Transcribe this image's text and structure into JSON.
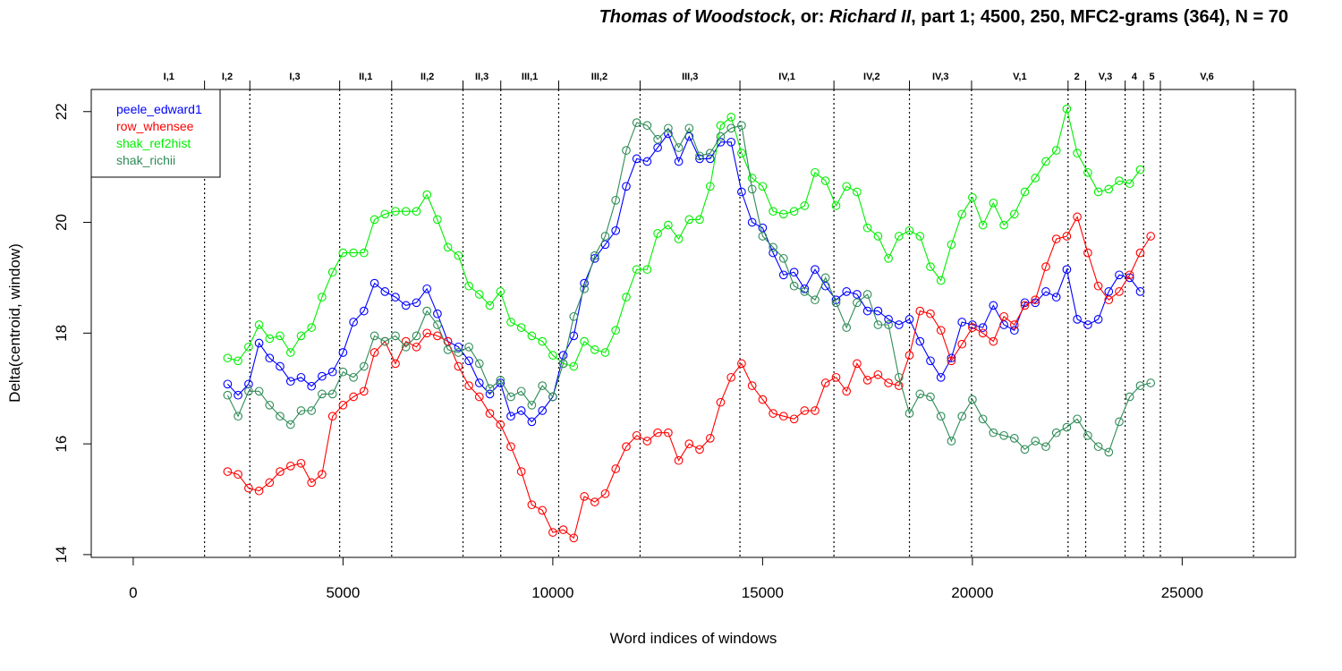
{
  "title": {
    "part1_italic": "Thomas of Woodstock",
    "part2": ", or: ",
    "part3_italic": "Richard II",
    "part4": ", part 1; 4500, 250, MFC2-grams (364), N = 70"
  },
  "chart_data": {
    "type": "line",
    "xlabel": "Word indices of windows",
    "ylabel": "Delta(centroid, window)",
    "xlim": [
      -1000,
      27700
    ],
    "ylim": [
      13.95,
      22.4
    ],
    "x_ticks": [
      0,
      5000,
      10000,
      15000,
      20000,
      25000
    ],
    "x_tick_labels": [
      "0",
      "5000",
      "10000",
      "15000",
      "20000",
      "25000"
    ],
    "y_ticks": [
      14,
      16,
      18,
      20,
      22
    ],
    "y_tick_labels": [
      "14",
      "16",
      "18",
      "20",
      "22"
    ],
    "grid": false,
    "legend_position": "top-left",
    "point_shape": "open-circle",
    "scene_boundaries": [
      1700,
      2780,
      4920,
      6160,
      7860,
      8760,
      10140,
      12080,
      14460,
      16700,
      18500,
      19980,
      22280,
      22700,
      23640,
      24080,
      24480,
      26700
    ],
    "scene_labels": [
      {
        "label": "I,1",
        "x": 850
      },
      {
        "label": "I,2",
        "x": 2240
      },
      {
        "label": "I,3",
        "x": 3850
      },
      {
        "label": "II,1",
        "x": 5540
      },
      {
        "label": "II,2",
        "x": 7010
      },
      {
        "label": "II,3",
        "x": 8310
      },
      {
        "label": "III,1",
        "x": 9450
      },
      {
        "label": "III,2",
        "x": 11110
      },
      {
        "label": "III,3",
        "x": 13270
      },
      {
        "label": "IV,1",
        "x": 15580
      },
      {
        "label": "IV,2",
        "x": 17600
      },
      {
        "label": "IV,3",
        "x": 19240
      },
      {
        "label": "V,1",
        "x": 21130
      },
      {
        "label": "2",
        "x": 22490
      },
      {
        "label": "V,3",
        "x": 23170
      },
      {
        "label": "4",
        "x": 23860
      },
      {
        "label": "5",
        "x": 24280
      },
      {
        "label": "V,6",
        "x": 25590
      }
    ],
    "x_start": 2250,
    "x_step": 250,
    "series": [
      {
        "name": "peele_edward1",
        "color": "#0000ff",
        "values": [
          17.08,
          16.88,
          17.08,
          17.82,
          17.55,
          17.4,
          17.13,
          17.2,
          17.04,
          17.22,
          17.3,
          17.65,
          18.2,
          18.4,
          18.9,
          18.75,
          18.65,
          18.5,
          18.55,
          18.8,
          18.35,
          17.85,
          17.75,
          17.5,
          17.1,
          16.9,
          17.1,
          16.5,
          16.6,
          16.4,
          16.6,
          16.85,
          17.6,
          17.95,
          18.9,
          19.35,
          19.6,
          19.85,
          20.65,
          21.15,
          21.1,
          21.35,
          21.6,
          21.1,
          21.55,
          21.15,
          21.15,
          21.45,
          21.45,
          20.55,
          20.0,
          19.9,
          19.45,
          19.05,
          19.1,
          18.8,
          19.15,
          18.85,
          18.6,
          18.75,
          18.7,
          18.4,
          18.4,
          18.25,
          18.15,
          18.25,
          17.85,
          17.5,
          17.2,
          17.55,
          18.2,
          18.15,
          18.1,
          18.5,
          18.15,
          18.05,
          18.55,
          18.55,
          18.75,
          18.65,
          19.15,
          18.25,
          18.15,
          18.25,
          18.75,
          19.05,
          19.0,
          18.75
        ]
      },
      {
        "name": "row_whensee",
        "color": "#ff0000",
        "values": [
          15.5,
          15.45,
          15.2,
          15.15,
          15.3,
          15.5,
          15.6,
          15.65,
          15.3,
          15.45,
          16.5,
          16.7,
          16.85,
          16.95,
          17.65,
          17.85,
          17.45,
          17.85,
          17.75,
          18.0,
          17.95,
          17.85,
          17.4,
          17.05,
          16.85,
          16.55,
          16.35,
          15.95,
          15.5,
          14.9,
          14.8,
          14.4,
          14.45,
          14.3,
          15.05,
          14.95,
          15.1,
          15.55,
          15.95,
          16.15,
          16.05,
          16.2,
          16.2,
          15.7,
          16.0,
          15.9,
          16.1,
          16.75,
          17.2,
          17.45,
          17.05,
          16.8,
          16.55,
          16.5,
          16.45,
          16.6,
          16.6,
          17.1,
          17.2,
          16.95,
          17.45,
          17.15,
          17.25,
          17.1,
          17.05,
          17.6,
          18.4,
          18.35,
          18.05,
          17.5,
          17.8,
          18.1,
          18.0,
          17.85,
          18.3,
          18.15,
          18.5,
          18.6,
          19.2,
          19.7,
          19.75,
          20.1,
          19.45,
          18.85,
          18.6,
          18.75,
          19.05,
          19.45,
          19.75
        ]
      },
      {
        "name": "shak_ref2hist",
        "color": "#00ee00",
        "values": [
          17.55,
          17.5,
          17.75,
          18.15,
          17.9,
          17.95,
          17.65,
          17.95,
          18.1,
          18.65,
          19.1,
          19.45,
          19.45,
          19.45,
          20.05,
          20.15,
          20.2,
          20.2,
          20.2,
          20.5,
          20.05,
          19.55,
          19.4,
          18.85,
          18.7,
          18.5,
          18.75,
          18.2,
          18.1,
          17.95,
          17.85,
          17.6,
          17.45,
          17.4,
          17.85,
          17.7,
          17.65,
          18.05,
          18.65,
          19.15,
          19.15,
          19.8,
          19.95,
          19.7,
          20.05,
          20.05,
          20.65,
          21.75,
          21.9,
          21.25,
          20.8,
          20.65,
          20.2,
          20.15,
          20.2,
          20.3,
          20.9,
          20.75,
          20.3,
          20.65,
          20.55,
          19.9,
          19.75,
          19.35,
          19.75,
          19.85,
          19.75,
          19.2,
          18.95,
          19.6,
          20.15,
          20.45,
          19.95,
          20.35,
          19.95,
          20.15,
          20.55,
          20.8,
          21.1,
          21.3,
          22.05,
          21.25,
          20.9,
          20.55,
          20.6,
          20.75,
          20.7,
          20.95
        ]
      },
      {
        "name": "shak_richii",
        "color": "#2e8b57",
        "values": [
          16.88,
          16.5,
          16.95,
          16.95,
          16.7,
          16.5,
          16.35,
          16.6,
          16.6,
          16.9,
          16.9,
          17.3,
          17.2,
          17.4,
          17.95,
          17.85,
          17.95,
          17.75,
          17.95,
          18.4,
          18.15,
          17.7,
          17.65,
          17.75,
          17.45,
          17.0,
          17.15,
          16.85,
          16.95,
          16.7,
          17.05,
          16.85,
          17.45,
          18.3,
          18.8,
          19.4,
          19.75,
          20.4,
          21.3,
          21.8,
          21.75,
          21.5,
          21.7,
          21.35,
          21.7,
          21.2,
          21.25,
          21.55,
          21.7,
          21.75,
          20.6,
          19.75,
          19.55,
          19.35,
          18.85,
          18.75,
          18.6,
          19.0,
          18.55,
          18.1,
          18.55,
          18.7,
          18.15,
          18.15,
          17.2,
          16.55,
          16.9,
          16.85,
          16.5,
          16.05,
          16.5,
          16.8,
          16.45,
          16.2,
          16.15,
          16.1,
          15.9,
          16.05,
          15.95,
          16.2,
          16.3,
          16.45,
          16.15,
          15.95,
          15.85,
          16.4,
          16.85,
          17.05,
          17.1
        ]
      }
    ]
  }
}
